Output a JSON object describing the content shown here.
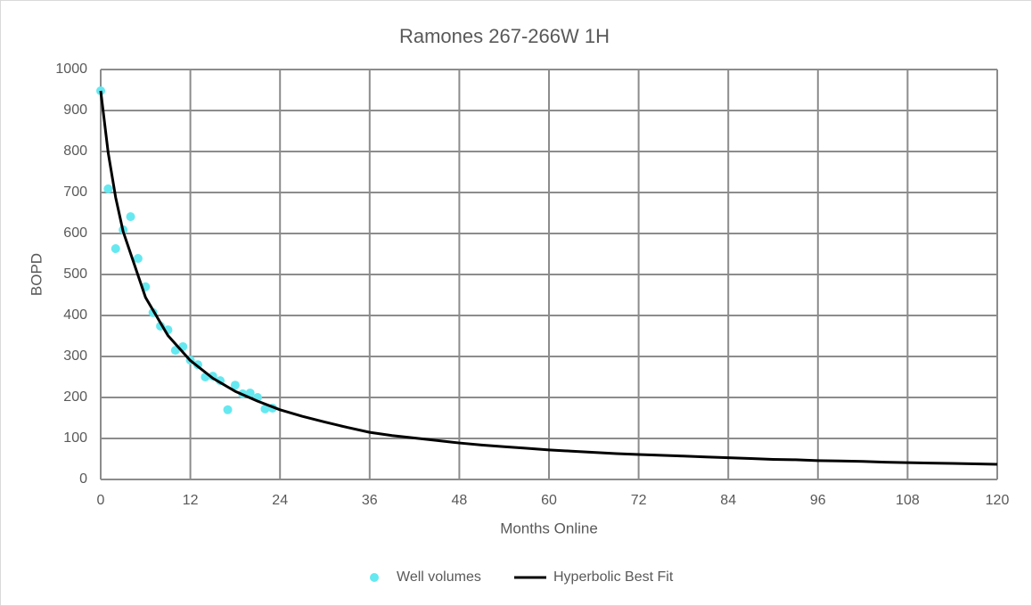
{
  "chart_data": {
    "type": "scatter",
    "title": "Ramones 267-266W 1H",
    "x_label": "Months Online",
    "y_label": "BOPD",
    "xlim": [
      0,
      120
    ],
    "xticks": [
      0,
      12,
      24,
      36,
      48,
      60,
      72,
      84,
      96,
      108,
      120
    ],
    "ylim": [
      0,
      1000
    ],
    "yticks": [
      0,
      100,
      200,
      300,
      400,
      500,
      600,
      700,
      800,
      900,
      1000
    ],
    "grid": true,
    "legend": "bottom",
    "series": [
      {
        "name": "Well volumes",
        "type": "scatter",
        "color": "#66e8f0",
        "x": [
          0,
          1,
          2,
          3,
          4,
          5,
          6,
          7,
          8,
          9,
          10,
          11,
          12,
          13,
          14,
          15,
          16,
          17,
          18,
          19,
          20,
          21,
          22,
          23
        ],
        "values": [
          948,
          709,
          563,
          609,
          641,
          539,
          470,
          407,
          374,
          365,
          315,
          324,
          291,
          280,
          250,
          252,
          241,
          170,
          230,
          209,
          211,
          200,
          172,
          174
        ]
      },
      {
        "name": "Hyperbolic Best Fit",
        "type": "line",
        "color": "#000000",
        "x": [
          0,
          1,
          2,
          3,
          6,
          9,
          12,
          15,
          18,
          21,
          24,
          27,
          30,
          33,
          36,
          39,
          42,
          45,
          48,
          51,
          54,
          57,
          60,
          63,
          66,
          69,
          72,
          75,
          78,
          81,
          84,
          87,
          90,
          93,
          96,
          99,
          102,
          105,
          108,
          111,
          114,
          117,
          120
        ],
        "values": [
          948,
          797,
          688,
          605,
          444,
          351,
          290,
          247,
          215,
          191,
          170,
          154,
          140,
          127,
          115,
          107,
          101,
          95,
          89,
          84,
          80,
          76,
          72,
          69,
          66,
          63,
          61,
          59,
          57,
          55,
          53,
          51,
          49,
          48,
          46,
          45,
          44,
          42,
          41,
          40,
          39,
          38,
          37
        ]
      }
    ]
  }
}
